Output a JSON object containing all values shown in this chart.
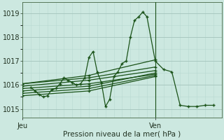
{
  "xlabel": "Pression niveau de la mer( hPa )",
  "background_color": "#cce8e0",
  "grid_color_major": "#a8c8c0",
  "grid_color_minor": "#b8d8d0",
  "line_color": "#1a5218",
  "yticks": [
    1015,
    1016,
    1017,
    1018,
    1019
  ],
  "ylim": [
    1014.65,
    1019.45
  ],
  "xlim": [
    0,
    48
  ],
  "x_jeu": 0,
  "x_ven": 32,
  "vline_x": 32,
  "series_main": [
    2,
    1015.9,
    3,
    1015.75,
    4,
    1015.6,
    5,
    1015.5,
    6,
    1015.55,
    7,
    1015.8,
    8,
    1015.85,
    9,
    1016.05,
    10,
    1016.3,
    11,
    1016.2,
    12,
    1016.1,
    13,
    1016.0,
    14,
    1016.05,
    15,
    1016.3,
    16,
    1017.15,
    17,
    1017.4,
    18,
    1016.55,
    19,
    1016.1,
    20,
    1015.1,
    21,
    1015.4,
    22,
    1016.35,
    23,
    1016.55,
    24,
    1016.9,
    25,
    1017.0,
    26,
    1018.0,
    27,
    1018.7,
    28,
    1018.85,
    29,
    1019.05,
    30,
    1018.85,
    32,
    1017.0,
    34,
    1016.65,
    36,
    1016.55,
    38,
    1015.15,
    40,
    1015.1,
    42,
    1015.1,
    44,
    1015.15,
    46,
    1015.15
  ],
  "fan_lines": [
    [
      0,
      1016.05,
      16,
      1016.3,
      32,
      1016.75
    ],
    [
      0,
      1015.95,
      16,
      1016.2,
      32,
      1016.6
    ],
    [
      0,
      1015.85,
      16,
      1016.05,
      32,
      1016.45
    ],
    [
      0,
      1015.75,
      16,
      1015.95,
      32,
      1016.5
    ],
    [
      0,
      1015.65,
      16,
      1015.85,
      32,
      1016.4
    ],
    [
      0,
      1015.55,
      16,
      1015.75,
      32,
      1016.35
    ],
    [
      0,
      1016.05,
      16,
      1016.4,
      32,
      1017.05
    ]
  ],
  "figsize": [
    3.2,
    2.0
  ],
  "dpi": 100
}
